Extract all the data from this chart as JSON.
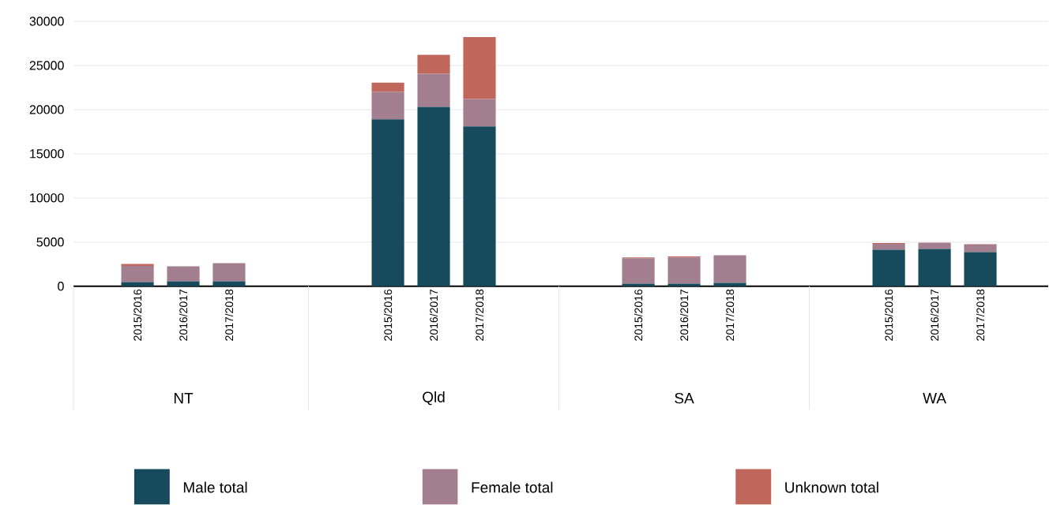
{
  "chart_data": {
    "type": "bar",
    "stacked": true,
    "categories": [
      "2015/2016",
      "2016/2017",
      "2017/2018",
      "2015/2016",
      "2016/2017",
      "2017/2018",
      "2015/2016",
      "2016/2017",
      "2017/2018",
      "2015/2016",
      "2016/2017",
      "2017/2018"
    ],
    "annotations": [
      "NT",
      "Qld",
      "SA",
      "WA"
    ],
    "series": [
      {
        "name": "Male total",
        "color": "#174a5c",
        "values": [
          470,
          560,
          560,
          18900,
          20300,
          18100,
          290,
          290,
          380,
          4130,
          4220,
          3870
        ]
      },
      {
        "name": "Female total",
        "color": "#a27e8e",
        "values": [
          1820,
          1700,
          2060,
          3100,
          3750,
          3100,
          2890,
          2980,
          3130,
          660,
          720,
          830
        ]
      },
      {
        "name": "Unknown total",
        "color": "#bf675b",
        "values": [
          240,
          0,
          0,
          1050,
          2150,
          7000,
          90,
          90,
          0,
          90,
          0,
          60
        ]
      }
    ],
    "ylim": [
      0,
      30000
    ],
    "yticks": [
      0,
      5000,
      10000,
      15000,
      20000,
      25000,
      30000
    ],
    "grid": "y",
    "legend": "bottom"
  }
}
